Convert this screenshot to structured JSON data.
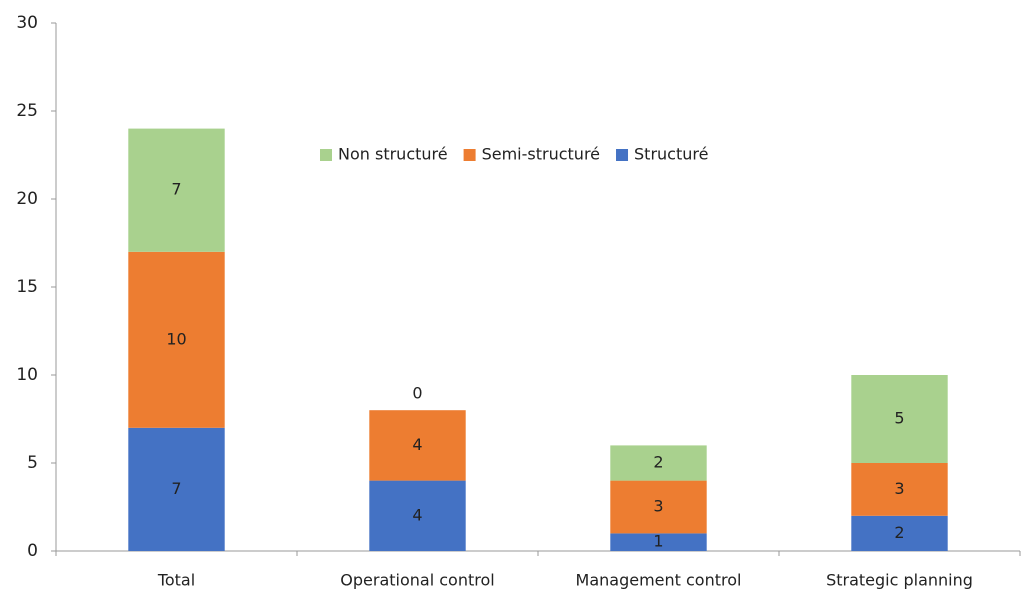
{
  "chart_data": {
    "type": "stacked_bar",
    "categories": [
      "Total",
      "Operational control",
      "Management control",
      "Strategic planning"
    ],
    "series": [
      {
        "name": "Structuré",
        "color": "#4472c4",
        "values": [
          7,
          4,
          1,
          2
        ]
      },
      {
        "name": "Semi-structuré",
        "color": "#ed7d31",
        "values": [
          10,
          4,
          3,
          3
        ]
      },
      {
        "name": "Non structuré",
        "color": "#a9d18e",
        "values": [
          7,
          0,
          2,
          5
        ]
      }
    ],
    "ylim": [
      0,
      30
    ],
    "yticks": [
      0,
      5,
      10,
      15,
      20,
      25,
      30
    ],
    "grid": false,
    "legend": "top"
  }
}
